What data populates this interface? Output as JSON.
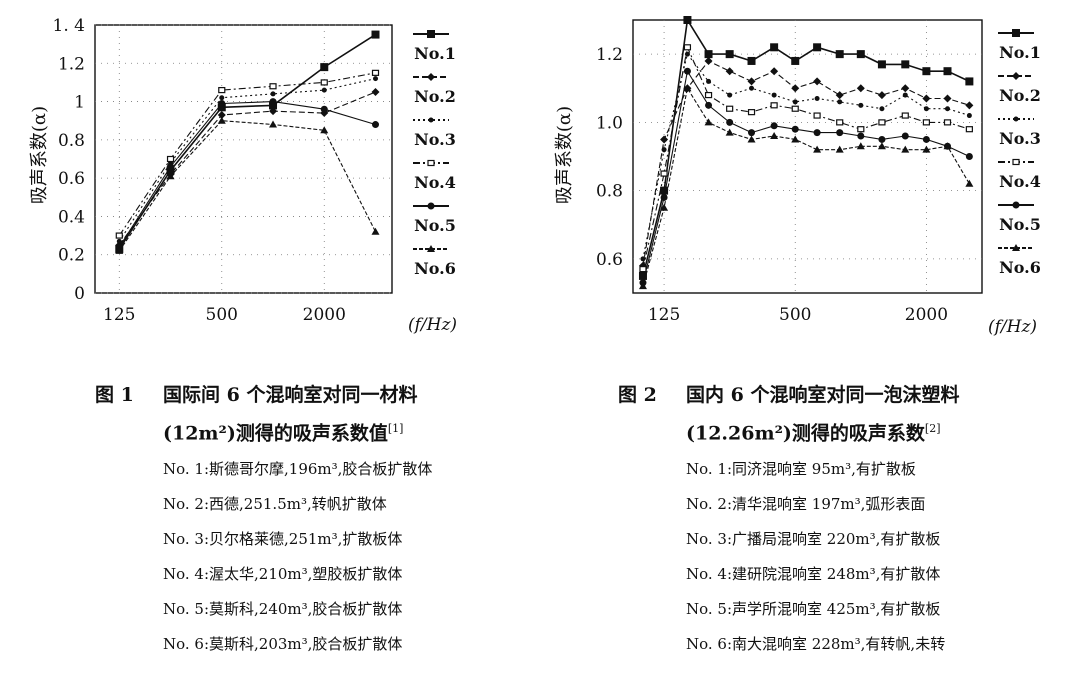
{
  "figure1": {
    "caption": {
      "number": "图 1",
      "title": "国际间 6 个混响室对同一材料",
      "subtitle": "(12m²)测得的吸声系数值",
      "ref": "[1]",
      "items": [
        "No. 1:斯德哥尔摩,196m³,胶合板扩散体",
        "No. 2:西德,251.5m³,转帆扩散体",
        "No. 3:贝尔格莱德,251m³,扩散板体",
        "No. 4:渥太华,210m³,塑胶板扩散体",
        "No. 5:莫斯科,240m³,胶合板扩散体",
        "No. 6:莫斯科,203m³,胶合板扩散体"
      ]
    }
  },
  "figure2": {
    "caption": {
      "number": "图 2",
      "title": "国内 6 个混响室对同一泡沫塑料",
      "subtitle": "(12.26m²)测得的吸声系数",
      "ref": "[2]",
      "items": [
        "No. 1:同济混响室 95m³,有扩散板",
        "No. 2:清华混响室 197m³,弧形表面",
        "No. 3:广播局混响室 220m³,有扩散板",
        "No. 4:建研院混响室 248m³,有扩散体",
        "No. 5:声学所混响室 425m³,有扩散板",
        "No. 6:南大混响室 228m³,有转帆,未转"
      ]
    }
  },
  "chart_data": [
    {
      "type": "line",
      "ylabel": "吸声系数(α)",
      "xlabel": "(f/Hz)",
      "x_scale": "log",
      "x_tick_labels": [
        "125",
        "500",
        "2000"
      ],
      "x_ticks": [
        125,
        500,
        2000
      ],
      "ylim": [
        0,
        1.4
      ],
      "y_ticks": [
        0,
        0.2,
        0.4,
        0.6,
        0.8,
        1,
        1.2,
        1.4
      ],
      "y_tick_labels": [
        "0",
        "0.2",
        "0.4",
        "0.6",
        "0.8",
        "1",
        "1.2",
        "1. 4"
      ],
      "grid": true,
      "legend_position": "right",
      "x": [
        125,
        250,
        500,
        1000,
        2000,
        4000
      ],
      "series": [
        {
          "name": "No.1",
          "values": [
            0.23,
            0.64,
            0.97,
            0.98,
            1.18,
            1.35
          ]
        },
        {
          "name": "No.2",
          "values": [
            0.25,
            0.62,
            0.93,
            0.95,
            0.94,
            1.05
          ]
        },
        {
          "name": "No.3",
          "values": [
            0.27,
            0.68,
            1.02,
            1.04,
            1.06,
            1.12
          ]
        },
        {
          "name": "No.4",
          "values": [
            0.3,
            0.7,
            1.06,
            1.08,
            1.1,
            1.15
          ]
        },
        {
          "name": "No.5",
          "values": [
            0.24,
            0.66,
            0.99,
            1.0,
            0.96,
            0.88
          ]
        },
        {
          "name": "No.6",
          "values": [
            0.22,
            0.61,
            0.9,
            0.88,
            0.85,
            0.32
          ]
        }
      ]
    },
    {
      "type": "line",
      "ylabel": "吸声系数(α)",
      "xlabel": "(f/Hz)",
      "x_scale": "log",
      "x_tick_labels": [
        "125",
        "500",
        "2000"
      ],
      "x_ticks": [
        125,
        500,
        2000
      ],
      "ylim": [
        0.5,
        1.3
      ],
      "y_ticks": [
        0.6,
        0.8,
        1.0,
        1.2
      ],
      "y_tick_labels": [
        "0.6",
        "0.8",
        "1.0",
        "1.2"
      ],
      "grid": true,
      "legend_position": "right",
      "x": [
        100,
        125,
        160,
        200,
        250,
        315,
        400,
        500,
        630,
        800,
        1000,
        1250,
        1600,
        2000,
        2500,
        3150
      ],
      "series": [
        {
          "name": "No.1",
          "values": [
            0.55,
            0.8,
            1.3,
            1.2,
            1.2,
            1.18,
            1.22,
            1.18,
            1.22,
            1.2,
            1.2,
            1.17,
            1.17,
            1.15,
            1.15,
            1.12
          ]
        },
        {
          "name": "No.2",
          "values": [
            0.58,
            0.95,
            1.1,
            1.18,
            1.15,
            1.12,
            1.15,
            1.1,
            1.12,
            1.08,
            1.1,
            1.08,
            1.1,
            1.07,
            1.07,
            1.05
          ]
        },
        {
          "name": "No.3",
          "values": [
            0.6,
            0.92,
            1.2,
            1.12,
            1.08,
            1.1,
            1.08,
            1.06,
            1.07,
            1.06,
            1.05,
            1.04,
            1.08,
            1.04,
            1.04,
            1.02
          ]
        },
        {
          "name": "No.4",
          "values": [
            0.57,
            0.85,
            1.22,
            1.08,
            1.04,
            1.03,
            1.05,
            1.04,
            1.02,
            1.0,
            0.98,
            1.0,
            1.02,
            1.0,
            1.0,
            0.98
          ]
        },
        {
          "name": "No.5",
          "values": [
            0.53,
            0.78,
            1.15,
            1.05,
            1.0,
            0.97,
            0.99,
            0.98,
            0.97,
            0.97,
            0.96,
            0.95,
            0.96,
            0.95,
            0.93,
            0.9
          ]
        },
        {
          "name": "No.6",
          "values": [
            0.52,
            0.75,
            1.1,
            1.0,
            0.97,
            0.95,
            0.96,
            0.95,
            0.92,
            0.92,
            0.93,
            0.93,
            0.92,
            0.92,
            0.93,
            0.82
          ]
        }
      ]
    }
  ]
}
